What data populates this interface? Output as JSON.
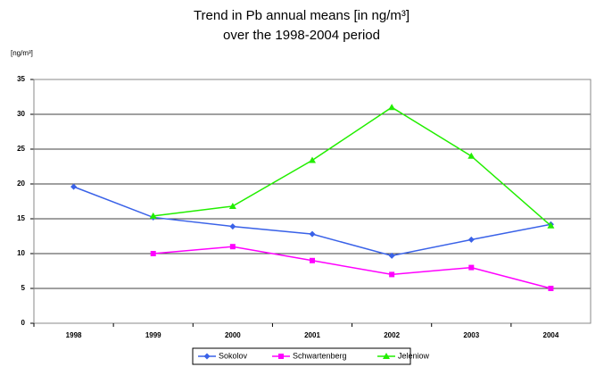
{
  "chart_data": {
    "type": "line",
    "title": [
      "Trend in Pb annual means [in ng/m³]",
      "over the 1998-2004 period"
    ],
    "y_label": "[ng/m³]",
    "categories": [
      "1998",
      "1999",
      "2000",
      "2001",
      "2002",
      "2003",
      "2004"
    ],
    "series": [
      {
        "name": "Sokolov",
        "color": "#3a62e8",
        "marker": "diamond",
        "values": [
          19.6,
          15.2,
          13.9,
          12.8,
          9.7,
          12.0,
          14.2
        ]
      },
      {
        "name": "Schwartenberg",
        "color": "#ff00ff",
        "marker": "square",
        "values": [
          null,
          10.0,
          11.0,
          9.0,
          7.0,
          8.0,
          5.0
        ]
      },
      {
        "name": "Jeleniow",
        "color": "#22ee00",
        "marker": "triangle",
        "values": [
          null,
          15.4,
          16.8,
          23.4,
          31.0,
          24.0,
          14.0
        ]
      }
    ],
    "ylim": [
      0,
      35
    ],
    "yticks": [
      0,
      5,
      10,
      15,
      20,
      25,
      30,
      35
    ],
    "grid": true,
    "legend": "bottom"
  }
}
